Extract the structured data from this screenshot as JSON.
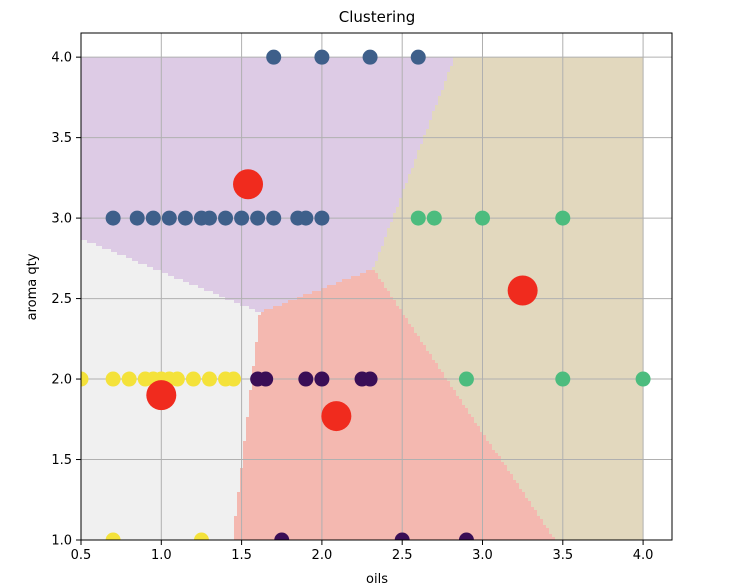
{
  "chart_data": {
    "type": "scatter",
    "title": "Clustering",
    "xlabel": "oils",
    "ylabel": "aroma qty",
    "xlim": [
      0.5,
      4.18
    ],
    "ylim": [
      1.0,
      4.15
    ],
    "xticks": [
      0.5,
      1.0,
      1.5,
      2.0,
      2.5,
      3.0,
      3.5,
      4.0
    ],
    "xtick_labels": [
      "0.5",
      "1.0",
      "1.5",
      "2.0",
      "2.5",
      "3.0",
      "3.5",
      "4.0"
    ],
    "yticks": [
      1.0,
      1.5,
      2.0,
      2.5,
      3.0,
      3.5,
      4.0
    ],
    "ytick_labels": [
      "1.0",
      "1.5",
      "2.0",
      "2.5",
      "3.0",
      "3.5",
      "4.0"
    ],
    "grid": true,
    "region_colors": [
      "#f0f0f0",
      "#ddcbe5",
      "#f4b8b0",
      "#e2d8be"
    ],
    "point_colors": [
      "#3e5f8a",
      "#f4e23a",
      "#3a0e56",
      "#4cbc7e"
    ],
    "center_color": "#f02b1e",
    "centers": [
      {
        "x": 1.0,
        "y": 1.9
      },
      {
        "x": 1.54,
        "y": 3.21
      },
      {
        "x": 2.09,
        "y": 1.77
      },
      {
        "x": 3.25,
        "y": 2.55
      }
    ],
    "series": [
      {
        "points": [
          [
            1.7,
            4.0
          ],
          [
            2.0,
            4.0
          ],
          [
            2.3,
            4.0
          ],
          [
            2.6,
            4.0
          ],
          [
            0.7,
            3.0
          ],
          [
            0.85,
            3.0
          ],
          [
            0.95,
            3.0
          ],
          [
            1.05,
            3.0
          ],
          [
            1.15,
            3.0
          ],
          [
            1.25,
            3.0
          ],
          [
            1.3,
            3.0
          ],
          [
            1.4,
            3.0
          ],
          [
            1.5,
            3.0
          ],
          [
            1.6,
            3.0
          ],
          [
            1.7,
            3.0
          ],
          [
            1.85,
            3.0
          ],
          [
            1.9,
            3.0
          ],
          [
            2.0,
            3.0
          ]
        ]
      },
      {
        "points": [
          [
            0.5,
            2.0
          ],
          [
            0.7,
            2.0
          ],
          [
            0.8,
            2.0
          ],
          [
            0.9,
            2.0
          ],
          [
            0.95,
            2.0
          ],
          [
            1.0,
            2.0
          ],
          [
            1.05,
            2.0
          ],
          [
            1.1,
            2.0
          ],
          [
            1.2,
            2.0
          ],
          [
            1.3,
            2.0
          ],
          [
            1.4,
            2.0
          ],
          [
            1.45,
            2.0
          ],
          [
            0.7,
            1.0
          ],
          [
            1.25,
            1.0
          ]
        ]
      },
      {
        "points": [
          [
            1.6,
            2.0
          ],
          [
            1.65,
            2.0
          ],
          [
            1.9,
            2.0
          ],
          [
            2.0,
            2.0
          ],
          [
            2.25,
            2.0
          ],
          [
            2.3,
            2.0
          ],
          [
            1.75,
            1.0
          ],
          [
            2.5,
            1.0
          ],
          [
            2.9,
            1.0
          ]
        ]
      },
      {
        "points": [
          [
            2.6,
            3.0
          ],
          [
            2.7,
            3.0
          ],
          [
            3.0,
            3.0
          ],
          [
            3.5,
            3.0
          ],
          [
            2.9,
            2.0
          ],
          [
            3.5,
            2.0
          ],
          [
            4.0,
            2.0
          ]
        ]
      }
    ]
  }
}
